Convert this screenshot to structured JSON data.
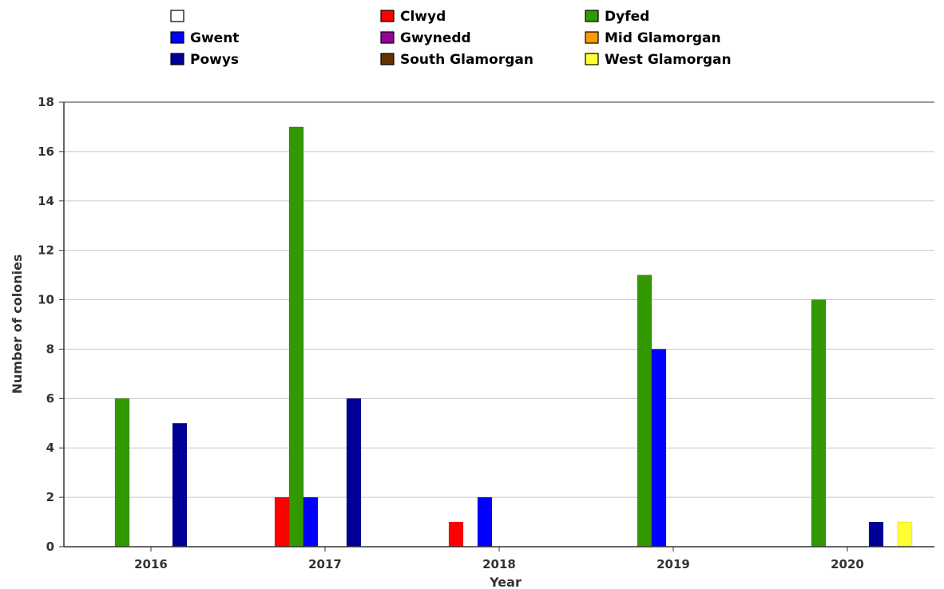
{
  "chart_data": {
    "type": "bar",
    "title": "",
    "xlabel": "Year",
    "ylabel": "Number of colonies",
    "categories": [
      "2016",
      "2017",
      "2018",
      "2019",
      "2020"
    ],
    "ylim": [
      0,
      18
    ],
    "yticks": [
      0,
      2,
      4,
      6,
      8,
      10,
      12,
      14,
      16,
      18
    ],
    "grid": true,
    "legend_position": "top",
    "series": [
      {
        "name": "",
        "color": "#ffffff",
        "values": [
          0,
          0,
          0,
          0,
          0
        ]
      },
      {
        "name": "Clwyd",
        "color": "#ff0000",
        "values": [
          0,
          2,
          1,
          0,
          0
        ]
      },
      {
        "name": "Dyfed",
        "color": "#339900",
        "values": [
          6,
          17,
          0,
          11,
          10
        ]
      },
      {
        "name": "Gwent",
        "color": "#0000ff",
        "values": [
          0,
          2,
          2,
          8,
          0
        ]
      },
      {
        "name": "Gwynedd",
        "color": "#990099",
        "values": [
          0,
          0,
          0,
          0,
          0
        ]
      },
      {
        "name": "Mid Glamorgan",
        "color": "#ff9900",
        "values": [
          0,
          0,
          0,
          0,
          0
        ]
      },
      {
        "name": "Powys",
        "color": "#000099",
        "values": [
          5,
          6,
          0,
          0,
          1
        ]
      },
      {
        "name": "South Glamorgan",
        "color": "#663300",
        "values": [
          0,
          0,
          0,
          0,
          0
        ]
      },
      {
        "name": "West Glamorgan",
        "color": "#ffff33",
        "values": [
          0,
          0,
          0,
          0,
          1
        ]
      }
    ]
  }
}
